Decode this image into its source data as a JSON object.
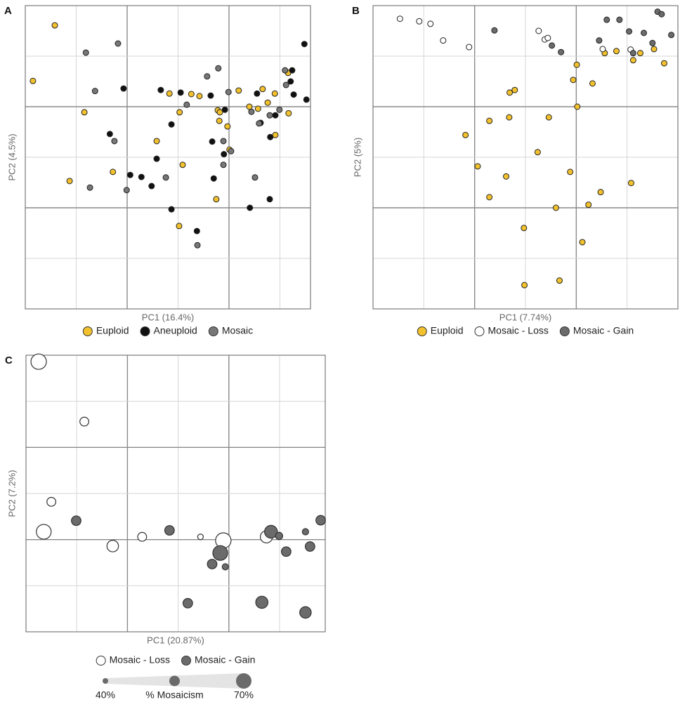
{
  "chart_data": [
    {
      "type": "scatter",
      "panel": "A",
      "x_label": "PC1 (16.4%)",
      "y_label": "PC2 (4.5%)",
      "xlim": [
        -2,
        3.6
      ],
      "ylim": [
        -4,
        2
      ],
      "xgrid_major": [
        0,
        2
      ],
      "xgrid_minor": [
        -1,
        1,
        3
      ],
      "ygrid_major": [
        0,
        -2
      ],
      "ygrid_minor": [
        1,
        -1,
        -3
      ],
      "series": [
        {
          "name": "Euploid",
          "color": "#f2c12e",
          "x": [
            -1.85,
            -1.42,
            -0.84,
            -1.13,
            -0.28,
            0.58,
            0.83,
            1.03,
            1.09,
            1.02,
            1.26,
            1.42,
            1.75,
            1.78,
            1.82,
            1.81,
            1.97,
            2.01,
            2.19,
            2.4,
            2.57,
            2.66,
            2.76,
            2.9,
            2.91,
            3.16,
            3.17
          ],
          "values": [
            0.51,
            1.61,
            -0.11,
            -1.47,
            -1.29,
            -0.68,
            0.26,
            -0.11,
            -1.15,
            -2.36,
            0.25,
            0.21,
            -1.83,
            -0.07,
            -0.11,
            -0.28,
            -0.39,
            -0.85,
            0.32,
            0,
            -0.04,
            0.35,
            0.08,
            0.26,
            -0.56,
            0.67,
            -0.13
          ]
        },
        {
          "name": "Aneuploid",
          "color": "#111111",
          "x": [
            -0.07,
            0.66,
            0.87,
            1.05,
            1.64,
            0.58,
            0.06,
            0.28,
            0.48,
            0.87,
            1.37,
            1.67,
            1.7,
            1.9,
            1.92,
            2.41,
            2.8,
            2.81,
            2.55,
            2.91,
            2.62,
            3.21,
            3.27,
            3.52,
            3.48,
            -0.34,
            3.24
          ],
          "values": [
            0.36,
            0.33,
            -0.35,
            0.28,
            0.22,
            -1.03,
            -1.35,
            -1.39,
            -1.57,
            -2.03,
            -2.46,
            -0.69,
            -1.42,
            -0.94,
            -0.06,
            -2,
            -1.83,
            -0.6,
            0.26,
            -0.17,
            -0.32,
            0.5,
            0.24,
            0.14,
            1.24,
            -0.54,
            0.72
          ]
        },
        {
          "name": "Mosaic",
          "color": "#777777",
          "x": [
            -0.81,
            -0.18,
            -0.63,
            -0.73,
            -0.25,
            -0.01,
            0.76,
            1.17,
            1.57,
            1.79,
            1.99,
            1.89,
            1.89,
            1.38,
            2.44,
            2.59,
            2.51,
            2.8,
            2.99,
            3.1,
            3.12,
            2.04
          ],
          "values": [
            1.07,
            1.25,
            0.31,
            -1.6,
            -0.68,
            -1.65,
            -1.4,
            0.04,
            0.6,
            0.76,
            0.29,
            -0.68,
            -1.15,
            -2.74,
            -0.1,
            -0.33,
            -1.4,
            -0.17,
            -0.06,
            0.72,
            0.43,
            -0.88
          ]
        }
      ]
    },
    {
      "type": "scatter",
      "panel": "B",
      "x_label": "PC1 (7.74%)",
      "y_label": "PC2 (5%)",
      "xlim": [
        -2,
        4
      ],
      "ylim": [
        -4,
        2
      ],
      "xgrid_major": [
        0,
        2
      ],
      "xgrid_minor": [
        -1,
        1,
        3
      ],
      "ygrid_major": [
        0,
        -2
      ],
      "ygrid_minor": [
        1,
        -1,
        -3
      ],
      "series": [
        {
          "name": "Euploid",
          "color": "#f2c12e",
          "x": [
            -0.18,
            0.06,
            0.29,
            0.29,
            0.62,
            0.68,
            0.69,
            0.79,
            0.97,
            0.98,
            1.24,
            1.46,
            1.6,
            1.67,
            1.88,
            1.94,
            2.01,
            2.02,
            2.12,
            2.24,
            2.32,
            2.48,
            2.56,
            2.79,
            3.08,
            3.12,
            3.26,
            3.53,
            3.73
          ],
          "values": [
            -0.56,
            -1.18,
            -0.28,
            -1.79,
            -1.38,
            -0.21,
            0.28,
            0.33,
            -2.4,
            -3.53,
            -0.9,
            -0.21,
            -2,
            -3.44,
            -1.29,
            0.53,
            0.83,
            0,
            -2.68,
            -1.94,
            0.46,
            -1.69,
            1.06,
            1.1,
            -1.51,
            0.92,
            1.06,
            1.14,
            0.86
          ]
        },
        {
          "name": "Mosaic - Loss",
          "color": "#ffffff",
          "x": [
            -1.47,
            -1.09,
            -0.87,
            -0.62,
            -0.11,
            1.26,
            1.38,
            1.44,
            2.52,
            3.07
          ],
          "values": [
            1.74,
            1.69,
            1.64,
            1.31,
            1.18,
            1.5,
            1.33,
            1.36,
            1.14,
            1.13
          ]
        },
        {
          "name": "Mosaic - Gain",
          "color": "#6b6b6b",
          "x": [
            0.39,
            1.52,
            1.7,
            2.45,
            2.6,
            2.85,
            3.04,
            3.12,
            3.33,
            3.5,
            3.6,
            3.68,
            3.87
          ],
          "values": [
            1.51,
            1.21,
            1.08,
            1.31,
            1.72,
            1.72,
            1.49,
            1.06,
            1.46,
            1.26,
            1.88,
            1.83,
            1.42
          ]
        }
      ]
    },
    {
      "type": "bubble",
      "panel": "C",
      "x_label": "PC1 (20.87%)",
      "y_label": "PC2 (7.2%)",
      "xlim": [
        -2,
        3.9
      ],
      "ylim": [
        -2,
        4
      ],
      "xgrid_major": [
        0,
        2
      ],
      "xgrid_minor": [
        -1,
        1,
        3
      ],
      "ygrid_major": [
        0,
        2
      ],
      "ygrid_minor": [
        -1,
        1,
        3
      ],
      "size_lim": [
        40,
        70
      ],
      "size_title": "% Mosaicism",
      "size_ticks": [
        {
          "value": 40,
          "label": "40%"
        },
        {
          "value": 70,
          "label": "70%"
        }
      ],
      "series": [
        {
          "name": "Mosaic - Loss",
          "color": "#ffffff",
          "x": [
            -1.75,
            -0.85,
            -1.5,
            -1.65,
            -0.29,
            0.29,
            1.44,
            1.89,
            2.74
          ],
          "values": [
            3.86,
            2.56,
            0.82,
            0.17,
            -0.14,
            0.06,
            0.06,
            -0.02,
            0.06
          ],
          "sizes": [
            70,
            50,
            50,
            68,
            58,
            50,
            40,
            70,
            60
          ]
        },
        {
          "name": "Mosaic - Gain",
          "color": "#6b6b6b",
          "x": [
            -1.01,
            0.83,
            1.19,
            1.67,
            1.83,
            1.93,
            2.65,
            2.83,
            2.99,
            3.13,
            3.51,
            3.6,
            3.51,
            3.81
          ],
          "values": [
            0.41,
            0.2,
            -1.38,
            -0.53,
            -0.29,
            -0.59,
            -1.36,
            0.17,
            0.08,
            -0.26,
            0.17,
            -0.15,
            -1.58,
            0.42
          ],
          "sizes": [
            52,
            52,
            52,
            52,
            68,
            42,
            60,
            62,
            45,
            52,
            42,
            52,
            58,
            52
          ]
        }
      ]
    }
  ]
}
